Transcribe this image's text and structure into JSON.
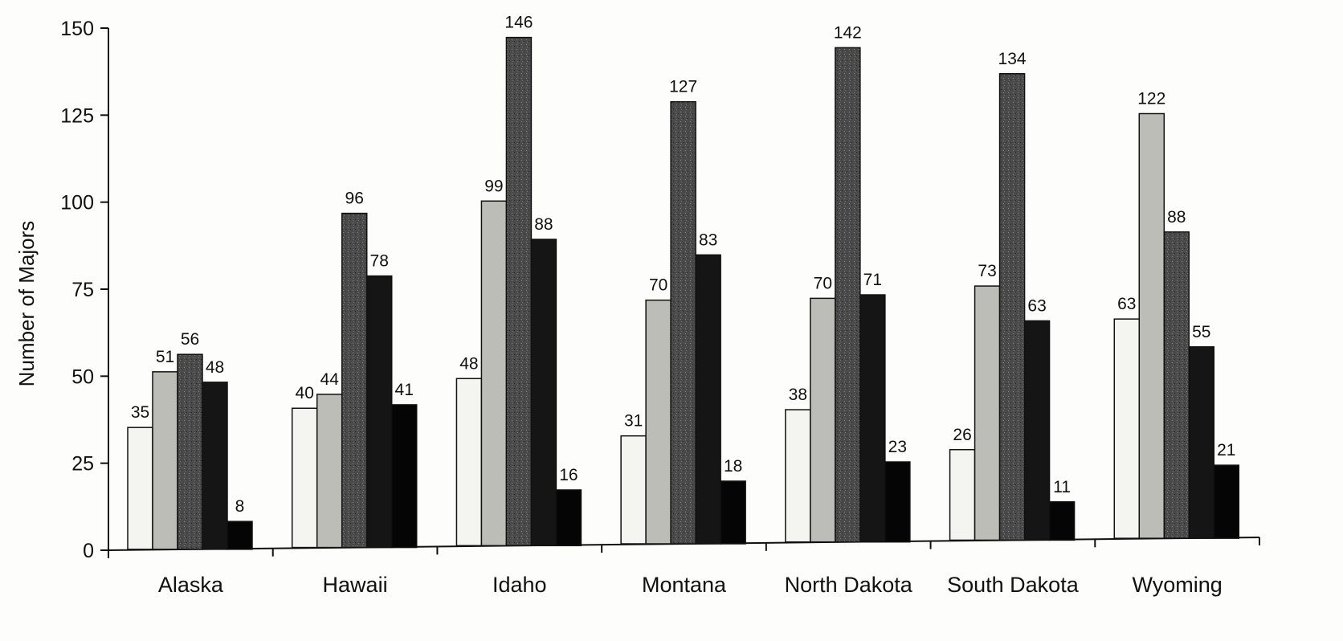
{
  "chart_data": {
    "type": "bar",
    "title": "",
    "xlabel": "",
    "ylabel": "Number of Majors",
    "ylim": [
      0,
      150
    ],
    "yticks": [
      0,
      25,
      50,
      75,
      100,
      125,
      150
    ],
    "categories": [
      "Alaska",
      "Hawaii",
      "Idaho",
      "Montana",
      "North Dakota",
      "South Dakota",
      "Wyoming"
    ],
    "series": [
      {
        "values": [
          35,
          40,
          48,
          31,
          38,
          26,
          63
        ],
        "fill": "#f4f4f0"
      },
      {
        "values": [
          51,
          44,
          99,
          70,
          70,
          73,
          122
        ],
        "fill": "#bdbdb8"
      },
      {
        "values": [
          56,
          96,
          146,
          127,
          142,
          134,
          88
        ],
        "fill": "#555555"
      },
      {
        "values": [
          48,
          78,
          88,
          83,
          71,
          63,
          55
        ],
        "fill": "#151515"
      },
      {
        "values": [
          8,
          41,
          16,
          18,
          23,
          11,
          21
        ],
        "fill": "#050505"
      }
    ],
    "legend": "none",
    "grid": false
  }
}
